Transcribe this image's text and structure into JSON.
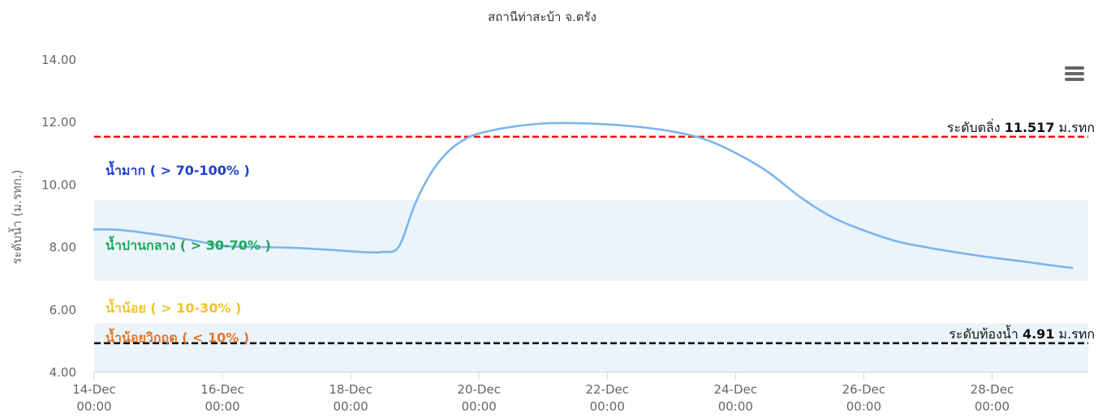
{
  "title": "สถานีท่าสะบ้า จ.ตรัง",
  "colors": {
    "line": "#7cb5ec",
    "bank_line": "#ff0000",
    "bottom_line": "#000000",
    "band": "#e3effa",
    "axis": "#ccd6eb",
    "label_high": "#1f3fd1",
    "label_mid": "#1aa85a",
    "label_low": "#f2c230",
    "label_critical": "#e0782a"
  },
  "menu": {
    "icon": "hamburger-menu-icon"
  },
  "chart_data": {
    "type": "line",
    "title": "สถานีท่าสะบ้า จ.ตรัง",
    "ylabel": "ระดับน้ำ (ม.รทก.)",
    "ylim": [
      4,
      14
    ],
    "yticks": [
      "4.00",
      "6.00",
      "8.00",
      "10.00",
      "12.00",
      "14.00"
    ],
    "xlim": [
      "2023-12-14 00:00",
      "2023-12-29 12:00"
    ],
    "xticks": [
      {
        "date": "2023-12-14 00:00",
        "line1": "14-Dec",
        "line2": "00:00"
      },
      {
        "date": "2023-12-16 00:00",
        "line1": "16-Dec",
        "line2": "00:00"
      },
      {
        "date": "2023-12-18 00:00",
        "line1": "18-Dec",
        "line2": "00:00"
      },
      {
        "date": "2023-12-20 00:00",
        "line1": "20-Dec",
        "line2": "00:00"
      },
      {
        "date": "2023-12-22 00:00",
        "line1": "22-Dec",
        "line2": "00:00"
      },
      {
        "date": "2023-12-24 00:00",
        "line1": "24-Dec",
        "line2": "00:00"
      },
      {
        "date": "2023-12-26 00:00",
        "line1": "26-Dec",
        "line2": "00:00"
      },
      {
        "date": "2023-12-28 00:00",
        "line1": "28-Dec",
        "line2": "00:00"
      }
    ],
    "grid": false,
    "legend": "none",
    "series": [
      {
        "x": [
          "2023-12-14 00:00",
          "2023-12-14 09:00",
          "2023-12-14 18:00",
          "2023-12-15 06:00",
          "2023-12-15 18:00",
          "2023-12-16 00:00",
          "2023-12-16 12:00",
          "2023-12-17 00:00",
          "2023-12-17 12:00",
          "2023-12-17 21:00",
          "2023-12-18 06:00",
          "2023-12-18 12:00",
          "2023-12-18 18:00",
          "2023-12-19 00:00",
          "2023-12-19 06:00",
          "2023-12-19 12:00",
          "2023-12-19 18:00",
          "2023-12-20 00:00",
          "2023-12-20 12:00",
          "2023-12-21 00:00",
          "2023-12-21 12:00",
          "2023-12-22 00:00",
          "2023-12-22 12:00",
          "2023-12-23 00:00",
          "2023-12-23 12:00",
          "2023-12-24 00:00",
          "2023-12-24 12:00",
          "2023-12-25 00:00",
          "2023-12-25 12:00",
          "2023-12-26 00:00",
          "2023-12-26 12:00",
          "2023-12-27 00:00",
          "2023-12-27 12:00",
          "2023-12-28 00:00",
          "2023-12-28 12:00",
          "2023-12-29 00:00",
          "2023-12-29 06:00"
        ],
        "values": [
          8.55,
          8.54,
          8.45,
          8.3,
          8.12,
          8.02,
          7.99,
          7.97,
          7.92,
          7.87,
          7.82,
          7.83,
          8.0,
          9.35,
          10.35,
          11.0,
          11.4,
          11.62,
          11.83,
          11.94,
          11.95,
          11.91,
          11.83,
          11.69,
          11.45,
          11.0,
          10.4,
          9.6,
          8.95,
          8.52,
          8.18,
          7.97,
          7.8,
          7.65,
          7.52,
          7.38,
          7.32
        ]
      }
    ],
    "reference_lines": [
      {
        "value": 11.517,
        "label": "ระดับตลิ่ง",
        "value_label": "11.517",
        "unit": "ม.รทก",
        "color": "#ff0000"
      },
      {
        "value": 4.91,
        "label": "ระดับท้องน้ำ",
        "value_label": "4.91",
        "unit": "ม.รทก",
        "color": "#000000"
      }
    ],
    "bands": [
      {
        "from": 6.9,
        "to": 9.5
      },
      {
        "from": 4.0,
        "to": 5.55
      }
    ],
    "annotations": [
      {
        "text": "น้ำมาก ( > 70-100% )",
        "y": 10.45,
        "color": "#1f3fd1"
      },
      {
        "text": "น้ำปานกลาง ( > 30-70% )",
        "y": 8.05,
        "color": "#1aa85a"
      },
      {
        "text": "น้ำน้อย ( > 10-30% )",
        "y": 6.05,
        "color": "#f2c230"
      },
      {
        "text": "น้ำน้อยวิกฤต ( < 10% )",
        "y": 5.1,
        "color": "#e0782a"
      }
    ]
  }
}
